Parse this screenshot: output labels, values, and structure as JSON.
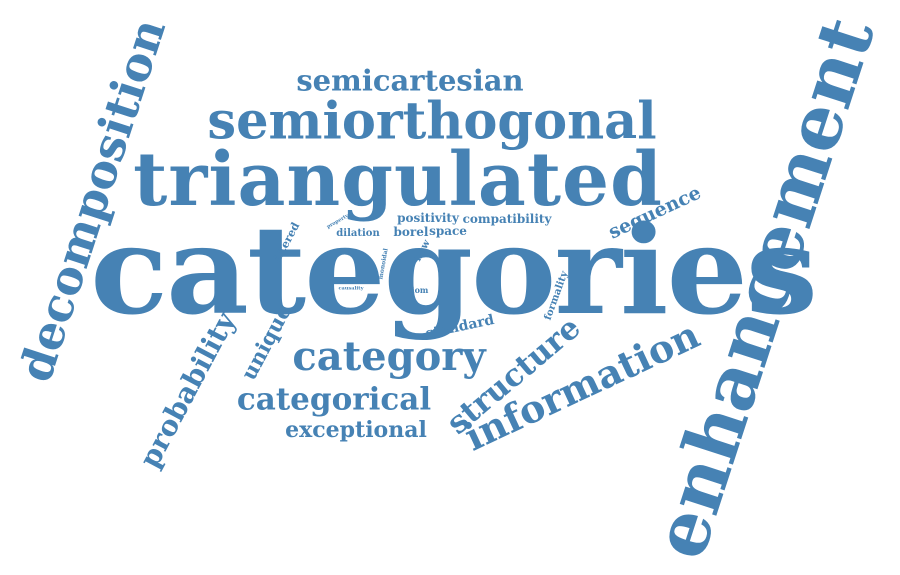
{
  "cloud": {
    "color": "#4682b4",
    "background": "#ffffff",
    "words": [
      {
        "key": "categories",
        "text": "categories",
        "weight": 100
      },
      {
        "key": "enhancement",
        "text": "enhancement",
        "weight": 62
      },
      {
        "key": "triangulated",
        "text": "triangulated",
        "weight": 58
      },
      {
        "key": "decomposition",
        "text": "decomposition",
        "weight": 42
      },
      {
        "key": "semiorthogonal",
        "text": "semiorthogonal",
        "weight": 40
      },
      {
        "key": "information",
        "text": "information",
        "weight": 33
      },
      {
        "key": "category",
        "text": "category",
        "weight": 33
      },
      {
        "key": "structure",
        "text": "structure",
        "weight": 28
      },
      {
        "key": "probability",
        "text": "probability",
        "weight": 26
      },
      {
        "key": "semicartesian",
        "text": "semicartesian",
        "weight": 26
      },
      {
        "key": "categorical",
        "text": "categorical",
        "weight": 25
      },
      {
        "key": "exceptional",
        "text": "exceptional",
        "weight": 20
      },
      {
        "key": "unique",
        "text": "unique",
        "weight": 18
      },
      {
        "key": "sequence",
        "text": "sequence",
        "weight": 16
      },
      {
        "key": "standard",
        "text": "standard",
        "weight": 13
      },
      {
        "key": "positivity",
        "text": "positivity",
        "weight": 11
      },
      {
        "key": "compatibility",
        "text": "compatibility",
        "weight": 11
      },
      {
        "key": "borel",
        "text": "borel",
        "weight": 11
      },
      {
        "key": "space",
        "text": "space",
        "weight": 11
      },
      {
        "key": "filtered",
        "text": "filtered",
        "weight": 10
      },
      {
        "key": "dilation",
        "text": "dilation",
        "weight": 9
      },
      {
        "key": "flow",
        "text": "flow",
        "weight": 9
      },
      {
        "key": "formality",
        "text": "formality",
        "weight": 8
      },
      {
        "key": "axiom",
        "text": "axiom",
        "weight": 7
      },
      {
        "key": "monoidal",
        "text": "monoidal",
        "weight": 6
      },
      {
        "key": "property",
        "text": "property",
        "weight": 5
      },
      {
        "key": "causality",
        "text": "causality",
        "weight": 5
      }
    ]
  }
}
